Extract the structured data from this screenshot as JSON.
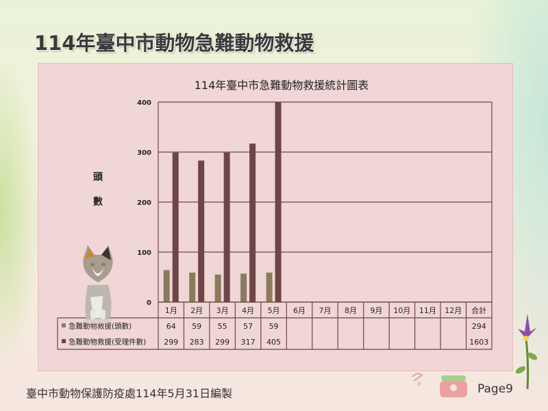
{
  "page": {
    "title": "114年臺中市動物急難動物救援",
    "footer": "臺中市動物保護防疫處114年5月31日編製",
    "page_number": "Page9"
  },
  "colors": {
    "panel": "#f0d6d6",
    "series_heads": "#8b7b5e",
    "series_cases": "#6e4546",
    "grid": "#6e4546"
  },
  "chart_data": {
    "type": "bar",
    "title": "114年臺中市急難動物救援統計圖表",
    "ylabel": "頭數",
    "ylim": [
      0,
      400
    ],
    "yticks": [
      0,
      100,
      200,
      300,
      400
    ],
    "grid": true,
    "categories": [
      "1月",
      "2月",
      "3月",
      "4月",
      "5月",
      "6月",
      "7月",
      "8月",
      "9月",
      "10月",
      "11月",
      "12月"
    ],
    "total_label": "合計",
    "series": [
      {
        "name": "急難動物救援(頭數)",
        "values": [
          64,
          59,
          55,
          57,
          59,
          null,
          null,
          null,
          null,
          null,
          null,
          null
        ],
        "total": 294,
        "color": "#8b7b5e"
      },
      {
        "name": "急難動物救援(受理件數)",
        "values": [
          299,
          283,
          299,
          317,
          405,
          null,
          null,
          null,
          null,
          null,
          null,
          null
        ],
        "total": 1603,
        "color": "#6e4546"
      }
    ]
  }
}
